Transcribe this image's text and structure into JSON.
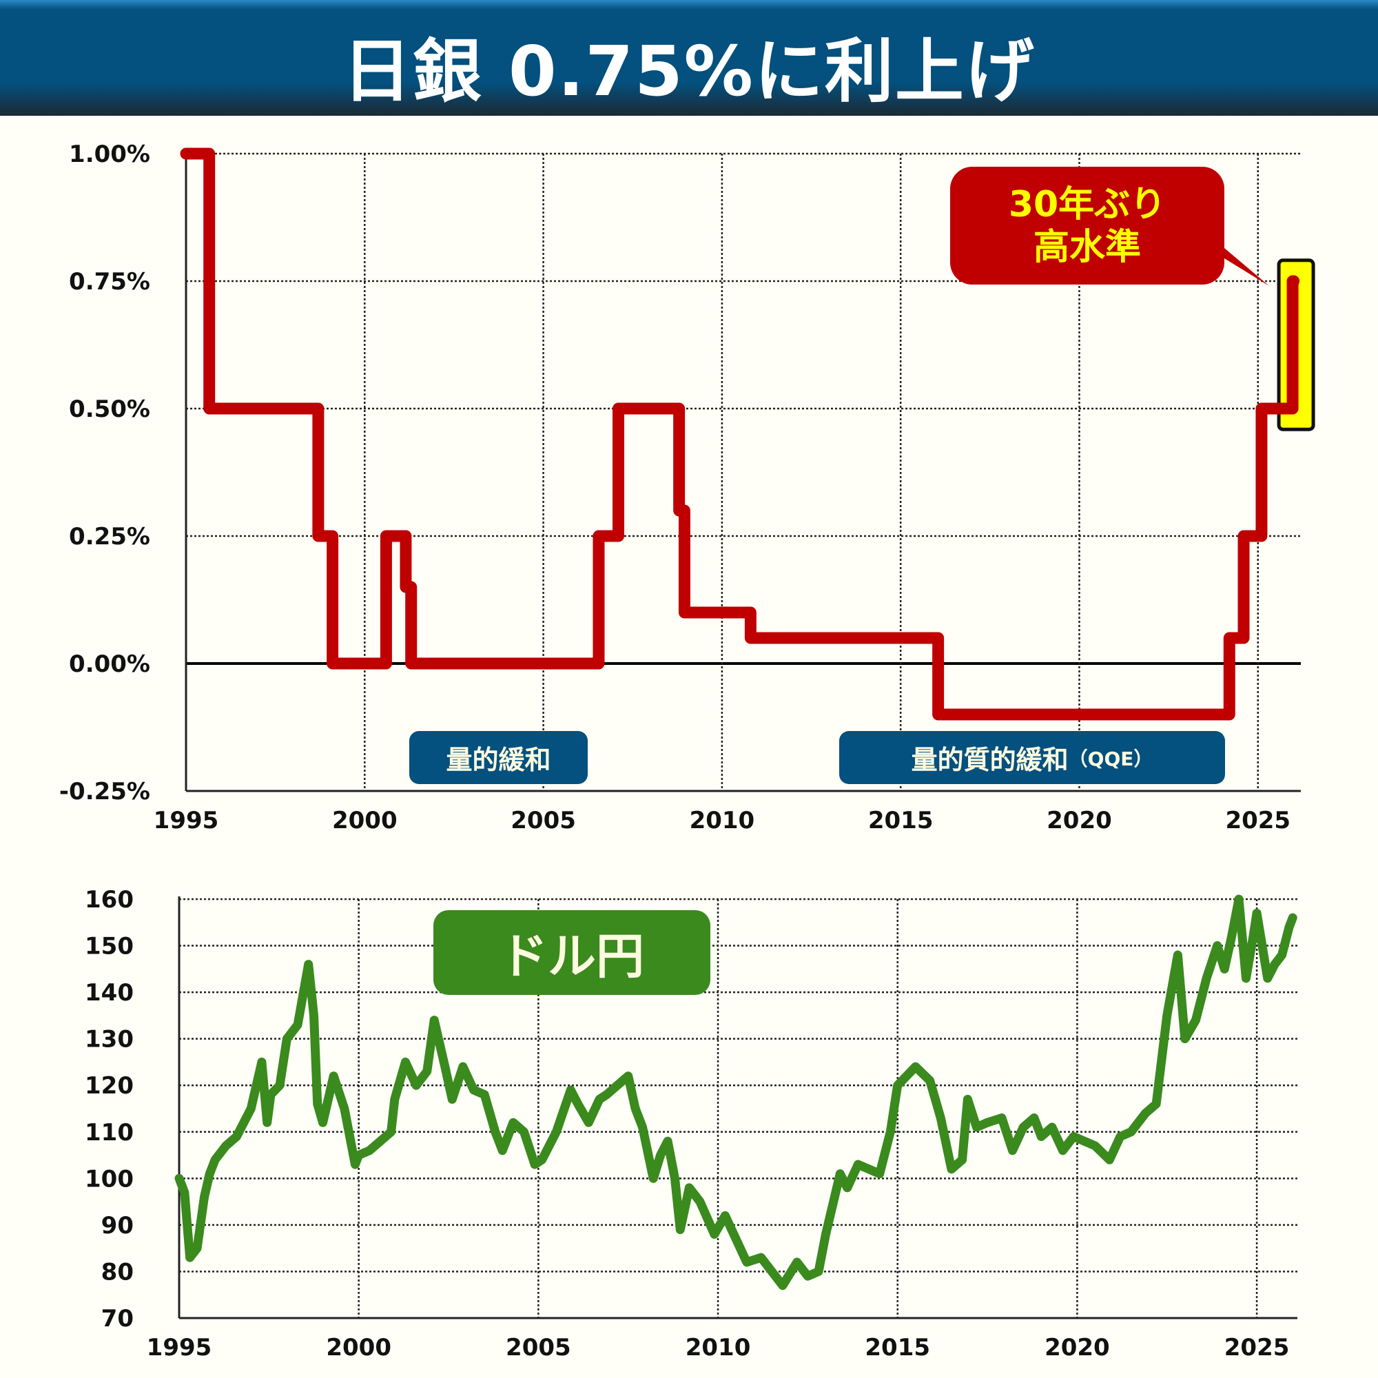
{
  "title": "日銀 0.75%に利上げ",
  "chart_data": [
    {
      "type": "line",
      "step": true,
      "ylim": [
        -0.25,
        1.0
      ],
      "xlim": [
        1995,
        2026.2
      ],
      "yticks": [
        "1.00%",
        "0.75%",
        "0.50%",
        "0.25%",
        "0.00%",
        "-0.25%"
      ],
      "ytick_values": [
        1.0,
        0.75,
        0.5,
        0.25,
        0,
        -0.25
      ],
      "xticks": [
        "1995",
        "2000",
        "2005",
        "2010",
        "2015",
        "2020",
        "2025"
      ],
      "grid": true,
      "color": "#c00000",
      "x": [
        1995.0,
        1995.65,
        1998.7,
        1999.1,
        2000.6,
        2001.15,
        2001.3,
        2006.55,
        2007.1,
        2008.8,
        2008.95,
        2010.8,
        2016.05,
        2024.2,
        2024.6,
        2025.1,
        2025.97,
        2026.0
      ],
      "y": [
        1.0,
        0.5,
        0.25,
        0.0,
        0.25,
        0.15,
        0.0,
        0.25,
        0.5,
        0.3,
        0.1,
        0.05,
        -0.1,
        0.05,
        0.25,
        0.5,
        0.75,
        0.75
      ],
      "annotations": {
        "callout": [
          "30年ぶり",
          "高水準"
        ],
        "qe": "量的緩和",
        "qqe": "量的質的緩和",
        "qqe_suffix": "（QQE）"
      },
      "callout_color": "#c00000",
      "callout_text_color": "#ffff00",
      "highlight_color": "#ffff00",
      "label_bg": "#04507e"
    },
    {
      "type": "line",
      "ylim": [
        70,
        160
      ],
      "xlim": [
        1995,
        2026.13
      ],
      "yticks": [
        "160",
        "150",
        "140",
        "130",
        "120",
        "110",
        "100",
        "90",
        "80",
        "70"
      ],
      "ytick_values": [
        160,
        150,
        140,
        130,
        120,
        110,
        100,
        90,
        80,
        70
      ],
      "xticks": [
        "1995",
        "2000",
        "2005",
        "2010",
        "2015",
        "2020",
        "2025"
      ],
      "grid": true,
      "color": "#3a8a1e",
      "label": "ドル円",
      "x": [
        1995.0,
        1995.15,
        1995.3,
        1995.5,
        1995.7,
        1995.85,
        1996.0,
        1996.3,
        1996.6,
        1997.0,
        1997.3,
        1997.45,
        1997.55,
        1997.8,
        1998.0,
        1998.3,
        1998.6,
        1998.75,
        1998.85,
        1999.0,
        1999.3,
        1999.6,
        1999.9,
        2000.0,
        2000.3,
        2000.6,
        2000.9,
        2001.0,
        2001.3,
        2001.6,
        2001.9,
        2002.1,
        2002.4,
        2002.6,
        2002.9,
        2003.2,
        2003.5,
        2003.8,
        2004.0,
        2004.3,
        2004.6,
        2004.9,
        2005.1,
        2005.5,
        2005.9,
        2006.1,
        2006.4,
        2006.7,
        2006.9,
        2007.2,
        2007.5,
        2007.7,
        2007.9,
        2008.2,
        2008.4,
        2008.6,
        2008.8,
        2008.95,
        2009.2,
        2009.5,
        2009.9,
        2010.2,
        2010.5,
        2010.8,
        2011.2,
        2011.5,
        2011.8,
        2012.2,
        2012.5,
        2012.8,
        2013.0,
        2013.4,
        2013.6,
        2013.9,
        2014.2,
        2014.5,
        2014.8,
        2015.0,
        2015.5,
        2015.9,
        2016.2,
        2016.5,
        2016.8,
        2016.95,
        2017.2,
        2017.5,
        2017.9,
        2018.2,
        2018.5,
        2018.8,
        2019.0,
        2019.3,
        2019.6,
        2019.9,
        2020.2,
        2020.5,
        2020.9,
        2021.2,
        2021.5,
        2021.9,
        2022.2,
        2022.5,
        2022.8,
        2023.0,
        2023.3,
        2023.6,
        2023.9,
        2024.1,
        2024.3,
        2024.5,
        2024.7,
        2024.9,
        2025.0,
        2025.3,
        2025.5,
        2025.7,
        2025.9,
        2026.0
      ],
      "y": [
        100,
        97,
        83,
        85,
        96,
        101,
        104,
        107,
        109,
        115,
        125,
        112,
        118,
        120,
        130,
        133,
        146,
        135,
        116,
        112,
        122,
        115,
        103,
        105,
        106,
        108,
        110,
        117,
        125,
        120,
        123,
        134,
        124,
        117,
        124,
        119,
        118,
        110,
        106,
        112,
        110,
        103,
        104,
        110,
        119,
        116,
        112,
        117,
        118,
        120,
        122,
        115,
        111,
        100,
        105,
        108,
        100,
        89,
        98,
        95,
        88,
        92,
        87,
        82,
        83,
        80,
        77,
        82,
        79,
        80,
        88,
        101,
        98,
        103,
        102,
        101,
        110,
        120,
        124,
        121,
        113,
        102,
        104,
        117,
        111,
        112,
        113,
        106,
        111,
        113,
        109,
        111,
        106,
        109,
        108,
        107,
        104,
        109,
        110,
        114,
        116,
        135,
        148,
        130,
        134,
        143,
        150,
        145,
        152,
        160,
        143,
        152,
        157,
        143,
        146,
        148,
        154,
        156
      ]
    }
  ]
}
